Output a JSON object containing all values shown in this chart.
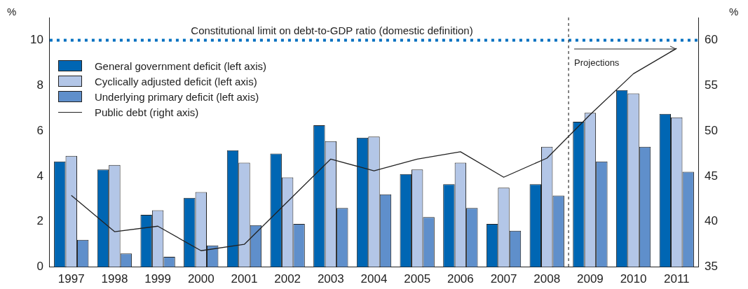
{
  "chart_data": {
    "type": "bar",
    "ylabel": "%",
    "y2label": "%",
    "categories": [
      "1997",
      "1998",
      "1999",
      "2000",
      "2001",
      "2002",
      "2003",
      "2004",
      "2005",
      "2006",
      "2007",
      "2008",
      "2009",
      "2010",
      "2011"
    ],
    "series": [
      {
        "name": "General government deficit (left axis)",
        "color": "#0066b3",
        "values": [
          4.65,
          4.3,
          2.3,
          3.05,
          5.15,
          5.0,
          6.25,
          5.7,
          4.1,
          3.65,
          1.9,
          3.65,
          6.4,
          7.8,
          6.75
        ]
      },
      {
        "name": "Cyclically adjusted deficit (left axis)",
        "color": "#b3c6e7",
        "values": [
          4.9,
          4.5,
          2.5,
          3.3,
          4.6,
          3.95,
          5.55,
          5.75,
          4.3,
          4.6,
          3.5,
          5.3,
          6.8,
          7.65,
          6.6
        ]
      },
      {
        "name": "Underlying primary deficit (left axis)",
        "color": "#5f8fcb",
        "values": [
          1.2,
          0.6,
          0.45,
          0.95,
          1.85,
          1.9,
          2.6,
          3.2,
          2.2,
          2.6,
          1.6,
          3.15,
          4.65,
          5.3,
          4.2
        ]
      },
      {
        "name": "Public debt (right axis)",
        "type": "line",
        "axis": "y2",
        "color": "#222222",
        "values": [
          42.9,
          38.9,
          39.5,
          36.8,
          37.5,
          42.2,
          46.9,
          45.6,
          46.9,
          47.7,
          44.9,
          47.0,
          51.8,
          56.3,
          59.1
        ]
      }
    ],
    "ylim": [
      0,
      11
    ],
    "yticks": [
      0,
      2,
      4,
      6,
      8,
      10
    ],
    "y2lim": [
      35,
      62.5
    ],
    "y2ticks": [
      35,
      40,
      45,
      50,
      55,
      60
    ],
    "ref_lines": [
      {
        "axis": "y2",
        "value": 60,
        "label": "Constitutional limit on debt-to-GDP ratio (domestic definition)",
        "color": "#0070c0",
        "line_style": "dotted"
      },
      {
        "axis": "x",
        "value": "2009",
        "color": "#333333",
        "line_style": "dashed"
      }
    ],
    "annotations": [
      "Projections"
    ],
    "legend": "top left",
    "grid": false,
    "marker": "none"
  }
}
